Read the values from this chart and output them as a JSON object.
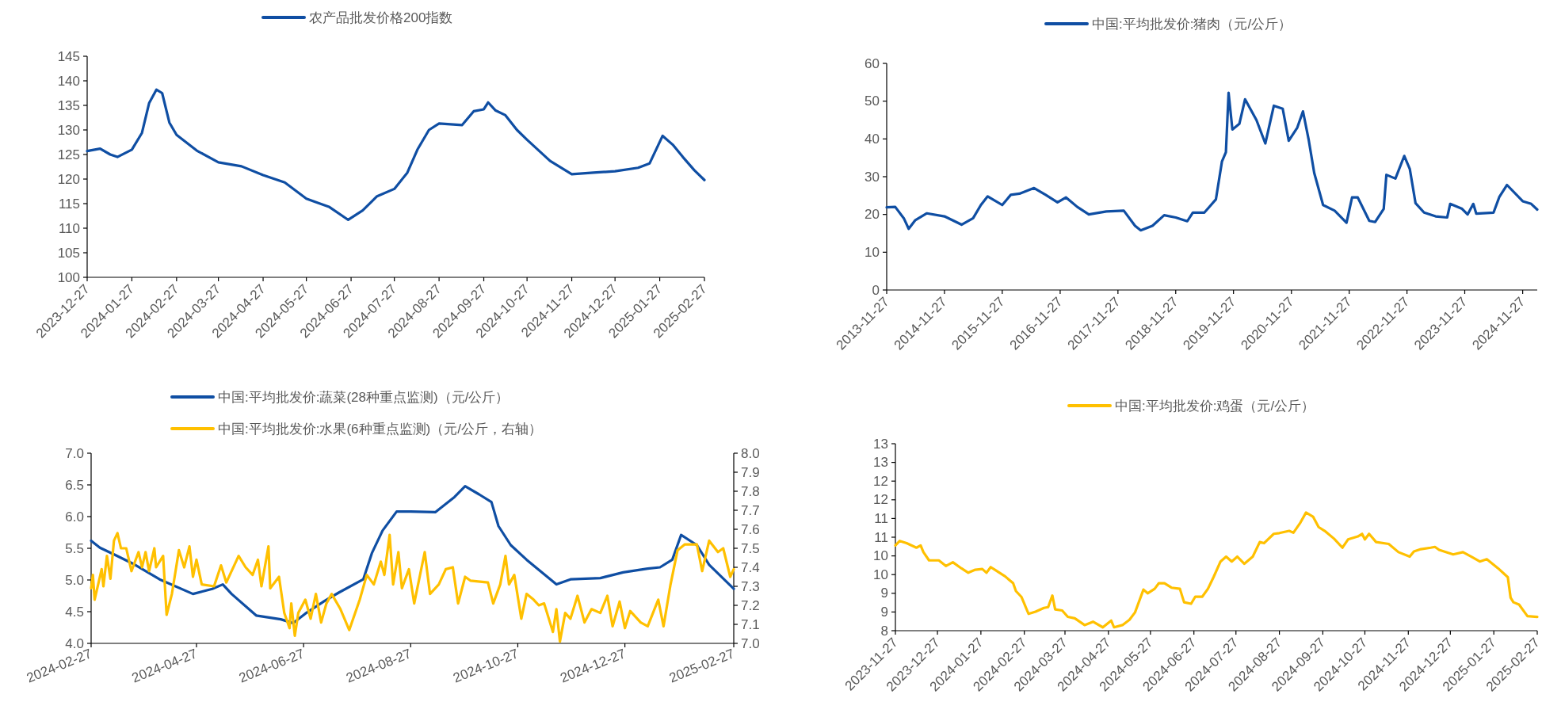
{
  "chart_data": [
    {
      "type": "line",
      "legend": "top",
      "xlim": [
        "2023-12-27",
        "2025-02-27"
      ],
      "xticks": [
        "2023-12-27",
        "2024-01-27",
        "2024-02-27",
        "2024-03-27",
        "2024-04-27",
        "2024-05-27",
        "2024-06-27",
        "2024-07-27",
        "2024-08-27",
        "2024-09-27",
        "2024-10-27",
        "2024-11-27",
        "2024-12-27",
        "2025-01-27",
        "2025-02-27"
      ],
      "ylim": [
        100,
        145
      ],
      "yticks": [
        100,
        105,
        110,
        115,
        120,
        125,
        130,
        135,
        140,
        145
      ],
      "x": [
        "2023-12-27",
        "2024-01-05",
        "2024-01-12",
        "2024-01-17",
        "2024-01-27",
        "2024-02-03",
        "2024-02-08",
        "2024-02-13",
        "2024-02-17",
        "2024-02-22",
        "2024-02-27",
        "2024-03-12",
        "2024-03-27",
        "2024-04-12",
        "2024-04-27",
        "2024-05-12",
        "2024-05-27",
        "2024-06-12",
        "2024-06-25",
        "2024-07-05",
        "2024-07-15",
        "2024-07-27",
        "2024-08-05",
        "2024-08-12",
        "2024-08-20",
        "2024-08-27",
        "2024-09-12",
        "2024-09-20",
        "2024-09-27",
        "2024-09-30",
        "2024-10-05",
        "2024-10-12",
        "2024-10-20",
        "2024-10-27",
        "2024-11-12",
        "2024-11-27",
        "2024-12-12",
        "2024-12-27",
        "2025-01-12",
        "2025-01-20",
        "2025-01-29",
        "2025-02-05",
        "2025-02-12",
        "2025-02-20",
        "2025-02-27"
      ],
      "series": [
        {
          "name": "农产品批发价格200指数",
          "color": "#0f4ea3",
          "values": [
            125.7,
            126.2,
            125.0,
            124.5,
            126.0,
            129.4,
            135.5,
            138.2,
            137.5,
            131.5,
            129.0,
            125.8,
            123.4,
            122.6,
            120.8,
            119.3,
            116.0,
            114.3,
            111.7,
            113.6,
            116.5,
            118.0,
            121.3,
            126.0,
            130.0,
            131.3,
            131.0,
            133.8,
            134.2,
            135.6,
            134.0,
            133.0,
            130.0,
            128.0,
            123.7,
            121.0,
            121.3,
            121.6,
            122.3,
            123.2,
            128.8,
            127.0,
            124.5,
            121.8,
            119.8
          ]
        }
      ]
    },
    {
      "type": "line",
      "legend": "top",
      "xlim": [
        "2013-11-27",
        "2025-02-27"
      ],
      "xticks": [
        "2013-11-27",
        "2014-11-27",
        "2015-11-27",
        "2016-11-27",
        "2017-11-27",
        "2018-11-27",
        "2019-11-27",
        "2020-11-27",
        "2021-11-27",
        "2022-11-27",
        "2023-11-27",
        "2024-11-27"
      ],
      "ylim": [
        0,
        60
      ],
      "yticks": [
        0,
        10,
        20,
        30,
        40,
        50,
        60
      ],
      "x": [
        "2013-11-27",
        "2014-01-20",
        "2014-03-15",
        "2014-04-15",
        "2014-05-27",
        "2014-08-08",
        "2014-11-27",
        "2015-03-15",
        "2015-05-27",
        "2015-07-15",
        "2015-08-27",
        "2015-11-27",
        "2016-01-20",
        "2016-03-15",
        "2016-06-15",
        "2016-08-27",
        "2016-11-10",
        "2017-01-03",
        "2017-03-15",
        "2017-05-27",
        "2017-09-15",
        "2018-01-03",
        "2018-03-15",
        "2018-04-20",
        "2018-07-03",
        "2018-09-15",
        "2018-11-27",
        "2019-02-08",
        "2019-03-15",
        "2019-05-27",
        "2019-08-08",
        "2019-09-15",
        "2019-10-10",
        "2019-10-27",
        "2019-11-20",
        "2020-01-03",
        "2020-02-08",
        "2020-04-20",
        "2020-06-15",
        "2020-08-08",
        "2020-10-03",
        "2020-11-10",
        "2021-01-03",
        "2021-02-08",
        "2021-03-15",
        "2021-04-20",
        "2021-06-15",
        "2021-08-27",
        "2021-11-10",
        "2021-12-15",
        "2022-01-20",
        "2022-04-03",
        "2022-05-10",
        "2022-07-03",
        "2022-07-20",
        "2022-09-15",
        "2022-11-10",
        "2022-12-15",
        "2023-01-20",
        "2023-03-15",
        "2023-05-27",
        "2023-08-08",
        "2023-08-27",
        "2023-11-10",
        "2023-12-15",
        "2024-01-20",
        "2024-02-08",
        "2024-05-27",
        "2024-07-03",
        "2024-08-20",
        "2024-11-27",
        "2025-01-20",
        "2025-02-27"
      ],
      "series": [
        {
          "name": "中国:平均批发价:猪肉（元/公斤）",
          "color": "#0f4ea3",
          "values": [
            21.9,
            22,
            19,
            16.2,
            18.5,
            20.3,
            19.5,
            17.3,
            19,
            22.5,
            24.8,
            22.5,
            25.2,
            25.5,
            27.0,
            25.2,
            23.2,
            24.5,
            22,
            20,
            20.8,
            21,
            17,
            15.8,
            17,
            19.8,
            19.2,
            18.2,
            20.5,
            20.5,
            24,
            34,
            36.5,
            52.2,
            42.5,
            44,
            50.5,
            45,
            38.8,
            48.8,
            48,
            39.5,
            43,
            47.3,
            40,
            31,
            22.5,
            21,
            17.8,
            24.5,
            24.5,
            18.3,
            18,
            21.5,
            30.5,
            29.5,
            35.5,
            32,
            23,
            20.5,
            19.5,
            19.2,
            22.8,
            21.5,
            20.0,
            22.8,
            20.2,
            20.5,
            24.7,
            27.8,
            23.5,
            22.8,
            21.3
          ]
        }
      ]
    },
    {
      "type": "line",
      "legend": "top",
      "xlim": [
        "2024-02-27",
        "2025-02-27"
      ],
      "xticks": [
        "2024-02-27",
        "2024-04-27",
        "2024-06-27",
        "2024-08-27",
        "2024-10-27",
        "2024-12-27",
        "2025-02-27"
      ],
      "ylim": [
        4,
        7
      ],
      "yticks": [
        {
          "value": 4,
          "label": "4.0"
        },
        4.5,
        {
          "value": 5,
          "label": "5.0"
        },
        5.5,
        {
          "value": 6,
          "label": "6.0"
        },
        6.5,
        {
          "value": 7,
          "label": "7.0"
        }
      ],
      "y2lim": [
        7,
        8
      ],
      "y2ticks": [
        {
          "value": 7,
          "label": "7.0"
        },
        7.1,
        7.2,
        7.3,
        7.4,
        7.5,
        7.6,
        7.7,
        7.8,
        7.9,
        {
          "value": 8,
          "label": "8.0"
        }
      ],
      "series": [
        {
          "name": "中国:平均批发价:蔬菜(28种重点监测)（元/公斤）",
          "color": "#0f4ea3",
          "x": [
            "2024-02-27",
            "2024-03-03",
            "2024-03-12",
            "2024-03-23",
            "2024-04-06",
            "2024-04-25",
            "2024-05-06",
            "2024-05-12",
            "2024-05-17",
            "2024-05-31",
            "2024-06-14",
            "2024-06-21",
            "2024-06-28",
            "2024-07-09",
            "2024-07-17",
            "2024-07-31",
            "2024-08-05",
            "2024-08-11",
            "2024-08-19",
            "2024-08-27",
            "2024-09-10",
            "2024-09-21",
            "2024-09-27",
            "2024-10-05",
            "2024-10-12",
            "2024-10-16",
            "2024-10-23",
            "2024-11-01",
            "2024-11-08",
            "2024-11-18",
            "2024-11-26",
            "2024-12-13",
            "2024-12-26",
            "2025-01-09",
            "2025-01-16",
            "2025-01-23",
            "2025-01-28",
            "2025-02-06",
            "2025-02-13",
            "2025-02-27"
          ],
          "values": [
            5.62,
            5.51,
            5.39,
            5.24,
            5.01,
            4.78,
            4.86,
            4.93,
            4.78,
            4.44,
            4.38,
            4.32,
            4.47,
            4.67,
            4.8,
            5.01,
            5.43,
            5.78,
            6.08,
            6.08,
            6.07,
            6.31,
            6.48,
            6.35,
            6.23,
            5.85,
            5.55,
            5.32,
            5.16,
            4.93,
            5.01,
            5.03,
            5.12,
            5.18,
            5.2,
            5.32,
            5.71,
            5.55,
            5.24,
            4.86
          ]
        },
        {
          "name": "中国:平均批发价:水果(6种重点监测)（元/公斤，右轴）",
          "color": "#ffc000",
          "axis": "y2",
          "x": [
            "2024-02-27",
            "2024-02-28",
            "2024-02-29",
            "2024-03-04",
            "2024-03-05",
            "2024-03-07",
            "2024-03-09",
            "2024-03-11",
            "2024-03-13",
            "2024-03-15",
            "2024-03-18",
            "2024-03-21",
            "2024-03-25",
            "2024-03-27",
            "2024-03-29",
            "2024-03-31",
            "2024-04-03",
            "2024-04-04",
            "2024-04-08",
            "2024-04-10",
            "2024-04-13",
            "2024-04-17",
            "2024-04-20",
            "2024-04-23",
            "2024-04-25",
            "2024-04-27",
            "2024-04-30",
            "2024-05-07",
            "2024-05-11",
            "2024-05-14",
            "2024-05-21",
            "2024-05-25",
            "2024-05-29",
            "2024-06-01",
            "2024-06-03",
            "2024-06-07",
            "2024-06-08",
            "2024-06-13",
            "2024-06-16",
            "2024-06-19",
            "2024-06-20",
            "2024-06-22",
            "2024-06-24",
            "2024-06-28",
            "2024-07-01",
            "2024-07-04",
            "2024-07-07",
            "2024-07-10",
            "2024-07-13",
            "2024-07-18",
            "2024-07-23",
            "2024-07-29",
            "2024-08-02",
            "2024-08-06",
            "2024-08-10",
            "2024-08-12",
            "2024-08-15",
            "2024-08-17",
            "2024-08-20",
            "2024-08-22",
            "2024-08-26",
            "2024-08-29",
            "2024-09-04",
            "2024-09-07",
            "2024-09-12",
            "2024-09-16",
            "2024-09-20",
            "2024-09-23",
            "2024-09-27",
            "2024-09-30",
            "2024-10-10",
            "2024-10-13",
            "2024-10-17",
            "2024-10-20",
            "2024-10-22",
            "2024-10-25",
            "2024-10-29",
            "2024-11-01",
            "2024-11-05",
            "2024-11-08",
            "2024-11-11",
            "2024-11-16",
            "2024-11-18",
            "2024-11-20",
            "2024-11-23",
            "2024-11-26",
            "2024-11-30",
            "2024-12-04",
            "2024-12-08",
            "2024-12-13",
            "2024-12-17",
            "2024-12-20",
            "2024-12-24",
            "2024-12-27",
            "2024-12-30",
            "2025-01-05",
            "2025-01-09",
            "2025-01-15",
            "2025-01-18",
            "2025-01-22",
            "2025-01-26",
            "2025-01-30",
            "2025-02-06",
            "2025-02-09",
            "2025-02-13",
            "2025-02-18",
            "2025-02-21",
            "2025-02-25",
            "2025-02-27"
          ],
          "values": [
            7.29,
            7.36,
            7.23,
            7.39,
            7.3,
            7.46,
            7.34,
            7.54,
            7.58,
            7.5,
            7.5,
            7.38,
            7.48,
            7.4,
            7.48,
            7.38,
            7.5,
            7.4,
            7.46,
            7.15,
            7.26,
            7.49,
            7.4,
            7.51,
            7.35,
            7.44,
            7.31,
            7.3,
            7.41,
            7.32,
            7.46,
            7.4,
            7.36,
            7.44,
            7.3,
            7.51,
            7.29,
            7.35,
            7.16,
            7.08,
            7.21,
            7.04,
            7.16,
            7.23,
            7.13,
            7.26,
            7.11,
            7.21,
            7.26,
            7.18,
            7.07,
            7.23,
            7.36,
            7.31,
            7.43,
            7.36,
            7.57,
            7.31,
            7.48,
            7.29,
            7.39,
            7.21,
            7.48,
            7.26,
            7.31,
            7.39,
            7.4,
            7.21,
            7.35,
            7.33,
            7.32,
            7.21,
            7.31,
            7.46,
            7.31,
            7.36,
            7.13,
            7.26,
            7.23,
            7.2,
            7.21,
            7.06,
            7.18,
            7.01,
            7.16,
            7.13,
            7.25,
            7.11,
            7.18,
            7.16,
            7.25,
            7.09,
            7.22,
            7.08,
            7.17,
            7.11,
            7.09,
            7.23,
            7.09,
            7.31,
            7.49,
            7.52,
            7.52,
            7.38,
            7.54,
            7.48,
            7.5,
            7.35,
            7.39
          ]
        }
      ]
    },
    {
      "type": "line",
      "legend": "top",
      "xlim": [
        "2023-11-27",
        "2025-02-27"
      ],
      "xticks": [
        "2023-11-27",
        "2023-12-27",
        "2024-01-27",
        "2024-02-27",
        "2024-03-27",
        "2024-04-27",
        "2024-05-27",
        "2024-06-27",
        "2024-07-27",
        "2024-08-27",
        "2024-09-27",
        "2024-10-27",
        "2024-11-27",
        "2024-12-27",
        "2025-01-27",
        "2025-02-27"
      ],
      "ylim": [
        8,
        13
      ],
      "yticks": [
        8,
        {
          "value": 8.5,
          "label": "9"
        },
        9,
        {
          "value": 9.5,
          "label": "10"
        },
        10,
        {
          "value": 10.5,
          "label": "11"
        },
        11,
        {
          "value": 11.5,
          "label": "12"
        },
        12,
        {
          "value": 12.5,
          "label": "13"
        },
        13
      ],
      "x": [
        "2023-11-27",
        "2023-11-30",
        "2023-12-05",
        "2023-12-12",
        "2023-12-15",
        "2023-12-17",
        "2023-12-21",
        "2023-12-28",
        "2024-01-02",
        "2024-01-07",
        "2024-01-13",
        "2024-01-18",
        "2024-01-23",
        "2024-01-28",
        "2024-01-31",
        "2024-02-03",
        "2024-02-06",
        "2024-02-13",
        "2024-02-19",
        "2024-02-21",
        "2024-02-25",
        "2024-02-28",
        "2024-03-01",
        "2024-03-06",
        "2024-03-12",
        "2024-03-15",
        "2024-03-18",
        "2024-03-20",
        "2024-03-25",
        "2024-03-29",
        "2024-04-03",
        "2024-04-10",
        "2024-04-16",
        "2024-04-23",
        "2024-04-29",
        "2024-05-01",
        "2024-05-07",
        "2024-05-12",
        "2024-05-16",
        "2024-05-22",
        "2024-05-25",
        "2024-05-30",
        "2024-06-02",
        "2024-06-06",
        "2024-06-11",
        "2024-06-17",
        "2024-06-20",
        "2024-06-25",
        "2024-06-28",
        "2024-07-03",
        "2024-07-07",
        "2024-07-11",
        "2024-07-16",
        "2024-07-20",
        "2024-07-24",
        "2024-07-28",
        "2024-08-02",
        "2024-08-08",
        "2024-08-13",
        "2024-08-16",
        "2024-08-23",
        "2024-08-27",
        "2024-09-03",
        "2024-09-06",
        "2024-09-11",
        "2024-09-15",
        "2024-09-20",
        "2024-09-24",
        "2024-09-29",
        "2024-10-05",
        "2024-10-11",
        "2024-10-15",
        "2024-10-22",
        "2024-10-25",
        "2024-10-27",
        "2024-10-30",
        "2024-11-04",
        "2024-11-13",
        "2024-11-20",
        "2024-11-28",
        "2024-12-01",
        "2024-12-06",
        "2024-12-13",
        "2024-12-16",
        "2024-12-19",
        "2024-12-29",
        "2025-01-05",
        "2025-01-11",
        "2025-01-17",
        "2025-01-22",
        "2025-01-30",
        "2025-02-06",
        "2025-02-08",
        "2025-02-10",
        "2025-02-14",
        "2025-02-20",
        "2025-02-27"
      ],
      "series": [
        {
          "name": "中国:平均批发价:鸡蛋（元/公斤）",
          "color": "#ffc000",
          "values": [
            10.28,
            10.4,
            10.34,
            10.22,
            10.28,
            10.1,
            9.88,
            9.88,
            9.73,
            9.83,
            9.67,
            9.55,
            9.63,
            9.65,
            9.55,
            9.7,
            9.63,
            9.46,
            9.27,
            9.06,
            8.9,
            8.63,
            8.45,
            8.51,
            8.61,
            8.63,
            8.94,
            8.57,
            8.54,
            8.37,
            8.33,
            8.15,
            8.24,
            8.09,
            8.27,
            8.09,
            8.15,
            8.29,
            8.49,
            9.1,
            9.0,
            9.12,
            9.27,
            9.27,
            9.15,
            9.12,
            8.76,
            8.72,
            8.91,
            8.91,
            9.12,
            9.43,
            9.85,
            9.98,
            9.85,
            9.98,
            9.79,
            9.98,
            10.37,
            10.34,
            10.59,
            10.61,
            10.67,
            10.62,
            10.89,
            11.16,
            11.05,
            10.77,
            10.65,
            10.46,
            10.22,
            10.44,
            10.52,
            10.59,
            10.44,
            10.59,
            10.37,
            10.32,
            10.1,
            9.98,
            10.12,
            10.18,
            10.22,
            10.24,
            10.16,
            10.04,
            10.1,
            9.98,
            9.85,
            9.91,
            9.67,
            9.43,
            8.88,
            8.76,
            8.7,
            8.39,
            8.37
          ]
        }
      ]
    }
  ]
}
